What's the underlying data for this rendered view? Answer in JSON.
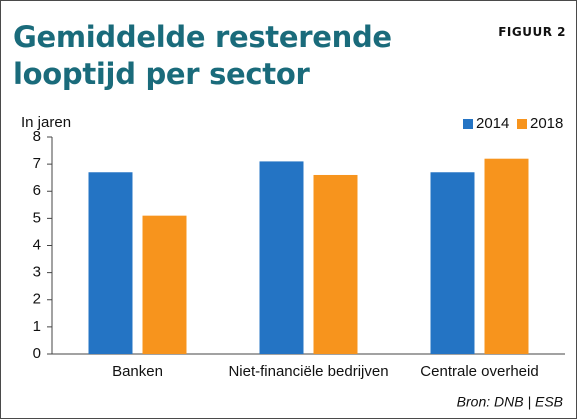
{
  "chart_data": {
    "type": "bar",
    "title": "Gemiddelde resterende looptijd per sector",
    "figure_label": "FIGUUR 2",
    "y_label": "In jaren",
    "source": "Bron: DNB | ESB",
    "categories": [
      "Banken",
      "Niet-financiële bedrijven",
      "Centrale overheid"
    ],
    "series": [
      {
        "name": "2014",
        "color": "#2474c4",
        "values": [
          6.7,
          7.1,
          6.7
        ]
      },
      {
        "name": "2018",
        "color": "#f7941d",
        "values": [
          5.1,
          6.6,
          7.2
        ]
      }
    ],
    "ylim": [
      0,
      8
    ],
    "yticks": [
      0,
      1,
      2,
      3,
      4,
      5,
      6,
      7,
      8
    ],
    "grid": false,
    "legend": "top-right"
  }
}
